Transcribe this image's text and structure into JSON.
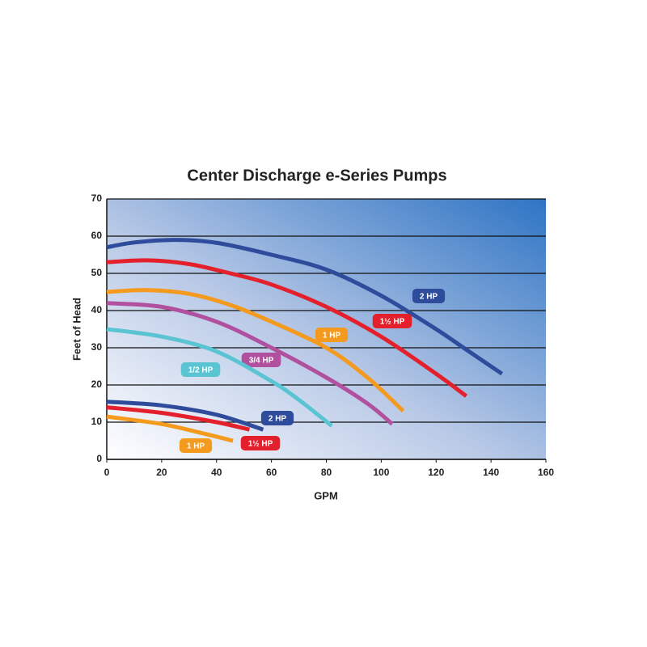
{
  "chart_data": {
    "type": "line",
    "title": "Center Discharge e-Series Pumps",
    "x_label": "GPM",
    "y_label": "Feet of Head",
    "xlim": [
      0,
      160
    ],
    "xticks": [
      0,
      20,
      40,
      60,
      80,
      100,
      120,
      140,
      160
    ],
    "ylim": [
      0,
      70
    ],
    "yticks": [
      0,
      10,
      20,
      30,
      40,
      50,
      60,
      70
    ],
    "grid": true,
    "series": [
      {
        "name": "2 HP",
        "color": "#2f4c9c",
        "x": [
          0,
          10,
          25,
          40,
          60,
          80,
          100,
          120,
          130,
          144
        ],
        "values": [
          57,
          58.3,
          59,
          58.2,
          55,
          51,
          44,
          35,
          30,
          23
        ]
      },
      {
        "name": "1½ HP",
        "color": "#e3202b",
        "x": [
          0,
          15,
          30,
          45,
          60,
          80,
          100,
          120,
          131
        ],
        "values": [
          53,
          53.5,
          52.5,
          50,
          47,
          41,
          33,
          23,
          17
        ]
      },
      {
        "name": "1 HP",
        "color": "#f39a1f",
        "x": [
          0,
          15,
          30,
          45,
          60,
          80,
          95,
          108
        ],
        "values": [
          45,
          45.5,
          44.5,
          41.5,
          37,
          30,
          22,
          13
        ]
      },
      {
        "name": "3/4 HP",
        "color": "#b0509e",
        "x": [
          0,
          20,
          40,
          60,
          80,
          95,
          104
        ],
        "values": [
          42,
          41,
          37,
          30,
          22,
          15,
          9.5
        ]
      },
      {
        "name": "1/2 HP",
        "color": "#5bc4d2",
        "x": [
          0,
          20,
          40,
          60,
          70,
          82
        ],
        "values": [
          35,
          33,
          29,
          21,
          16,
          9
        ]
      },
      {
        "name": "2 HP",
        "color": "#2f4c9c",
        "x": [
          0,
          20,
          40,
          57
        ],
        "values": [
          15.5,
          14.5,
          12,
          8
        ]
      },
      {
        "name": "1½ HP",
        "color": "#e3202b",
        "x": [
          0,
          20,
          40,
          52
        ],
        "values": [
          14,
          12.5,
          10,
          8
        ]
      },
      {
        "name": "1 HP",
        "color": "#f39a1f",
        "x": [
          0,
          20,
          35,
          46
        ],
        "values": [
          11.5,
          9.5,
          7,
          5
        ]
      }
    ]
  }
}
